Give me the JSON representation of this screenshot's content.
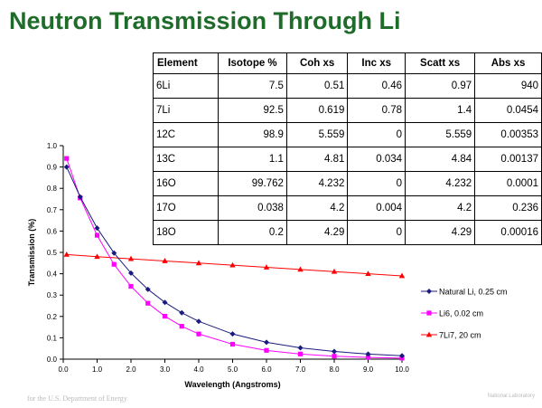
{
  "slide": {
    "title": "Neutron Transmission Through Li",
    "footer_left": "for the U.S. Department of Energy",
    "footer_right": "National Laboratory"
  },
  "table": {
    "headers": [
      "Element",
      "Isotope %",
      "Coh xs",
      "Inc xs",
      "Scatt xs",
      "Abs xs"
    ],
    "rows": [
      [
        "6Li",
        "7.5",
        "0.51",
        "0.46",
        "0.97",
        "940"
      ],
      [
        "7Li",
        "92.5",
        "0.619",
        "0.78",
        "1.4",
        "0.0454"
      ],
      [
        "12C",
        "98.9",
        "5.559",
        "0",
        "5.559",
        "0.00353"
      ],
      [
        "13C",
        "1.1",
        "4.81",
        "0.034",
        "4.84",
        "0.00137"
      ],
      [
        "16O",
        "99.762",
        "4.232",
        "0",
        "4.232",
        "0.0001"
      ],
      [
        "17O",
        "0.038",
        "4.2",
        "0.004",
        "4.2",
        "0.236"
      ],
      [
        "18O",
        "0.2",
        "4.29",
        "0",
        "4.29",
        "0.00016"
      ]
    ]
  },
  "chart_data": {
    "type": "line",
    "xlabel": "Wavelength (Angstroms)",
    "ylabel": "Transmission (%)",
    "xlim": [
      0.0,
      10.0
    ],
    "ylim": [
      0.0,
      1.0
    ],
    "x_ticks": [
      "0.0",
      "1.0",
      "2.0",
      "3.0",
      "4.0",
      "5.0",
      "6.0",
      "7.0",
      "8.0",
      "9.0",
      "10.0"
    ],
    "y_ticks": [
      "0.0",
      "0.1",
      "0.2",
      "0.3",
      "0.4",
      "0.5",
      "0.6",
      "0.7",
      "0.8",
      "0.9",
      "1.0"
    ],
    "grid": false,
    "legend_position": "right",
    "series": [
      {
        "name": "Natural Li, 0.25 cm",
        "color": "#1a1a80",
        "marker": "diamond",
        "x": [
          0.1,
          0.5,
          1.0,
          1.5,
          2.0,
          2.5,
          3.0,
          3.5,
          4.0,
          5.0,
          6.0,
          7.0,
          8.0,
          9.0,
          10.0
        ],
        "y": [
          0.9,
          0.76,
          0.614,
          0.497,
          0.403,
          0.327,
          0.266,
          0.217,
          0.177,
          0.118,
          0.079,
          0.053,
          0.036,
          0.024,
          0.016
        ]
      },
      {
        "name": "Li6, 0.02 cm",
        "color": "#ff00ff",
        "marker": "square",
        "x": [
          0.1,
          0.5,
          1.0,
          1.5,
          2.0,
          2.5,
          3.0,
          3.5,
          4.0,
          5.0,
          6.0,
          7.0,
          8.0,
          9.0,
          10.0
        ],
        "y": [
          0.94,
          0.755,
          0.58,
          0.444,
          0.341,
          0.262,
          0.201,
          0.154,
          0.118,
          0.07,
          0.041,
          0.024,
          0.014,
          0.008,
          0.005
        ]
      },
      {
        "name": "7Li7, 20 cm",
        "color": "#ff0000",
        "marker": "triangle",
        "x": [
          0.1,
          1.0,
          2.0,
          3.0,
          4.0,
          5.0,
          6.0,
          7.0,
          8.0,
          9.0,
          10.0
        ],
        "y": [
          0.49,
          0.48,
          0.47,
          0.46,
          0.45,
          0.44,
          0.43,
          0.42,
          0.41,
          0.4,
          0.39
        ]
      }
    ]
  }
}
